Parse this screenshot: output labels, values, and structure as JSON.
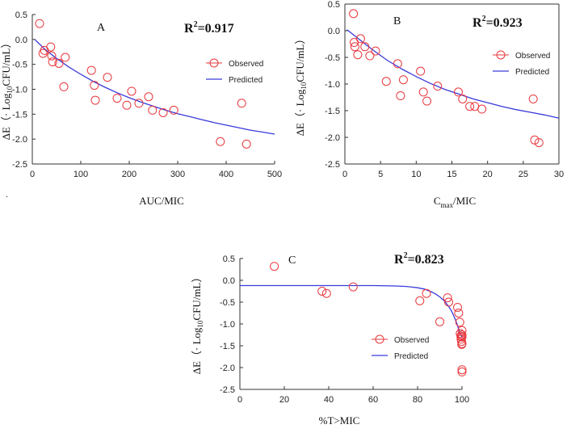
{
  "colors": {
    "observed": "#e8383d",
    "predicted": "#3a3adb",
    "axis": "#333333"
  },
  "chart_data": [
    {
      "type": "scatter",
      "panel": "A",
      "r2_label": "R",
      "r2_sup": "2",
      "r2_value": "=0.917",
      "xlabel": "AUC/MIC",
      "ylabel": {
        "pre": "ΔE（· Log",
        "sub": "10",
        "post": "CFU/mL）"
      },
      "xlim": [
        0,
        500
      ],
      "ylim": [
        -2.5,
        0.5
      ],
      "xticks": [
        0,
        100,
        200,
        300,
        400,
        500
      ],
      "yticks": [
        0.5,
        0.0,
        -0.5,
        -1.0,
        -1.5,
        -2.0,
        -2.5
      ],
      "xtick_labels": [
        "0",
        "100",
        "200",
        "300",
        "400",
        "500"
      ],
      "ytick_labels": [
        "0.5",
        "0.0",
        "-0.5",
        "-1.0",
        "-1.5",
        "-2.0",
        "-2.5"
      ],
      "legend": {
        "observed": "Observed",
        "predicted": "Predicted"
      },
      "series": [
        {
          "name": "Observed",
          "x": [
            15,
            22,
            25,
            38,
            40,
            42,
            55,
            65,
            68,
            122,
            128,
            130,
            155,
            175,
            195,
            205,
            220,
            240,
            248,
            270,
            292,
            388,
            432,
            442
          ],
          "y": [
            0.32,
            -0.28,
            -0.22,
            -0.15,
            -0.33,
            -0.45,
            -0.48,
            -0.95,
            -0.36,
            -0.62,
            -0.92,
            -1.22,
            -0.76,
            -1.18,
            -1.32,
            -1.04,
            -1.28,
            -1.15,
            -1.42,
            -1.47,
            -1.42,
            -2.05,
            -1.28,
            -2.1
          ]
        },
        {
          "name": "Predicted",
          "x": [
            5,
            25,
            50,
            75,
            100,
            125,
            150,
            175,
            200,
            225,
            250,
            275,
            300,
            325,
            350,
            375,
            400,
            425,
            450,
            475,
            500
          ],
          "y": [
            0.0,
            -0.19,
            -0.38,
            -0.55,
            -0.7,
            -0.84,
            -0.96,
            -1.07,
            -1.17,
            -1.26,
            -1.34,
            -1.42,
            -1.49,
            -1.55,
            -1.61,
            -1.67,
            -1.72,
            -1.77,
            -1.82,
            -1.86,
            -1.9
          ]
        }
      ]
    },
    {
      "type": "scatter",
      "panel": "B",
      "r2_label": "R",
      "r2_sup": "2",
      "r2_value": "=0.923",
      "xlabel": {
        "pre": "C",
        "sub": "max",
        "post": "/MIC"
      },
      "ylabel": {
        "pre": "ΔE（· Log",
        "sub": "10",
        "post": "CFU/mL）"
      },
      "xlim": [
        0,
        30
      ],
      "ylim": [
        -2.5,
        0.5
      ],
      "xticks": [
        0,
        5,
        10,
        15,
        20,
        25,
        30
      ],
      "yticks": [
        0.5,
        0.0,
        -0.5,
        -1.0,
        -1.5,
        -2.0,
        -2.5
      ],
      "xtick_labels": [
        "0",
        "5",
        "10",
        "15",
        "20",
        "25",
        "30"
      ],
      "ytick_labels": [
        "0.5",
        "0.0",
        "-0.5",
        "-1.0",
        "-1.5",
        "-2.0",
        "-2.5"
      ],
      "legend": {
        "observed": "Observed",
        "predicted": "Predicted"
      },
      "series": [
        {
          "name": "Observed",
          "x": [
            1.2,
            1.3,
            1.4,
            1.8,
            2.2,
            2.8,
            3.5,
            4.3,
            5.8,
            7.4,
            7.8,
            8.2,
            10.6,
            11.0,
            11.5,
            13.0,
            15.9,
            16.5,
            17.5,
            18.2,
            19.2,
            26.4,
            26.6,
            27.2
          ],
          "y": [
            0.32,
            -0.22,
            -0.3,
            -0.45,
            -0.15,
            -0.3,
            -0.47,
            -0.38,
            -0.95,
            -0.62,
            -1.22,
            -0.92,
            -0.76,
            -1.15,
            -1.32,
            -1.04,
            -1.15,
            -1.28,
            -1.42,
            -1.42,
            -1.47,
            -1.28,
            -2.05,
            -2.1
          ]
        },
        {
          "name": "Predicted",
          "x": [
            0.3,
            2,
            4,
            6,
            8,
            10,
            12,
            14,
            16,
            18,
            20,
            22,
            24,
            26,
            28,
            30
          ],
          "y": [
            0.02,
            -0.16,
            -0.37,
            -0.56,
            -0.72,
            -0.86,
            -0.99,
            -1.1,
            -1.19,
            -1.28,
            -1.35,
            -1.42,
            -1.48,
            -1.53,
            -1.58,
            -1.64
          ]
        }
      ]
    },
    {
      "type": "scatter",
      "panel": "C",
      "r2_label": "R",
      "r2_sup": "2",
      "r2_value": "=0.823",
      "xlabel": "%T>MIC",
      "ylabel": {
        "pre": "ΔE（· Log",
        "sub": "10",
        "post": "CFU/mL）"
      },
      "xlim": [
        0,
        100
      ],
      "ylim": [
        -2.5,
        0.5
      ],
      "xticks": [
        0,
        20,
        40,
        60,
        80,
        100
      ],
      "yticks": [
        0.5,
        0.0,
        -0.5,
        -1.0,
        -1.5,
        -2.0,
        -2.5
      ],
      "xtick_labels": [
        "0",
        "20",
        "40",
        "60",
        "80",
        "100"
      ],
      "ytick_labels": [
        "0.5",
        "0.0",
        "-0.5",
        "-1.0",
        "-1.5",
        "-2.0",
        "-2.5"
      ],
      "legend": {
        "observed": "Observed",
        "predicted": "Predicted"
      },
      "series": [
        {
          "name": "Observed",
          "x": [
            15.5,
            37,
            39,
            51,
            81,
            84,
            90,
            93.5,
            94,
            98,
            98.5,
            99,
            99.2,
            99.5,
            99.6,
            99.8,
            99.9,
            100,
            100,
            100,
            100,
            100,
            100
          ],
          "y": [
            0.32,
            -0.25,
            -0.3,
            -0.15,
            -0.47,
            -0.3,
            -0.95,
            -0.4,
            -0.5,
            -0.62,
            -0.75,
            -0.96,
            -1.22,
            -1.28,
            -1.35,
            -1.4,
            -1.47,
            -1.3,
            -1.15,
            -1.25,
            -1.45,
            -2.05,
            -2.1
          ]
        },
        {
          "name": "Predicted",
          "x": [
            0,
            20,
            40,
            60,
            70,
            75,
            80,
            83,
            86,
            88,
            90,
            92,
            94,
            95,
            96,
            97,
            98,
            98.5,
            99,
            99.5,
            100
          ],
          "y": [
            -0.12,
            -0.12,
            -0.12,
            -0.12,
            -0.13,
            -0.14,
            -0.17,
            -0.2,
            -0.26,
            -0.31,
            -0.38,
            -0.47,
            -0.6,
            -0.68,
            -0.78,
            -0.9,
            -1.04,
            -1.12,
            -1.2,
            -1.25,
            -1.3
          ]
        }
      ]
    }
  ],
  "footnote_mark": "."
}
